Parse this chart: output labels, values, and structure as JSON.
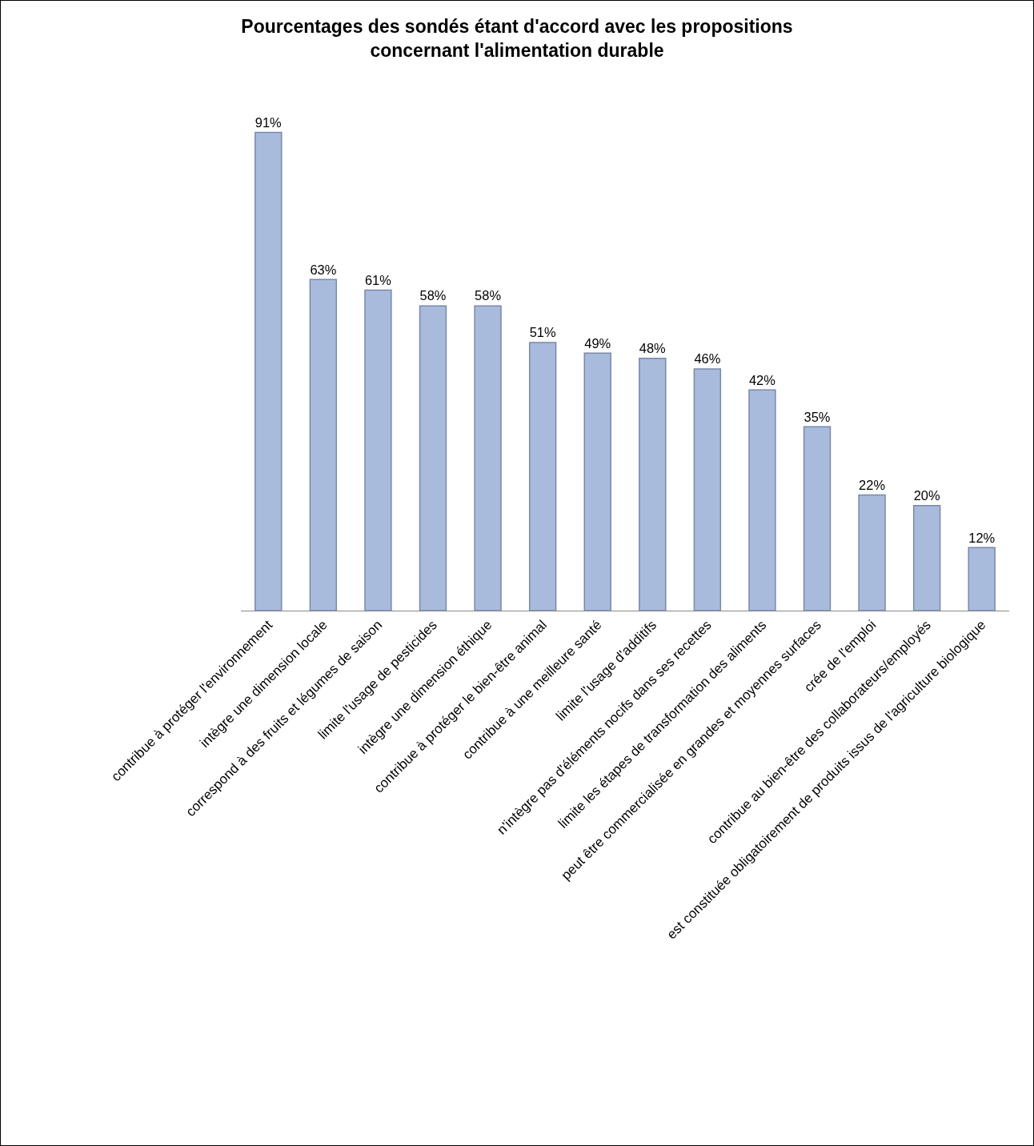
{
  "chart_data": {
    "type": "bar",
    "title": "Pourcentages des sondés étant d'accord avec les propositions\nconcernant l'alimentation durable",
    "categories": [
      "contribue à protéger l'environnement",
      "intègre une dimension locale",
      "correspond à des fruits et légumes de saison",
      "limite l'usage de pesticides",
      "intègre une dimension éthique",
      "contribue à protéger le bien-être animal",
      "contribue à une meilleure santé",
      "limite l'usage d'additifs",
      "n'intègre pas d'éléments nocifs dans ses recettes",
      "limite les étapes de transformation des aliments",
      "peut être commercialisée en grandes et moyennes surfaces",
      "crée de l'emploi",
      "contribue au bien-être des collaborateurs/employés",
      "est constituée obligatoirement de produits issus de l'agriculture biologique"
    ],
    "values": [
      91,
      63,
      61,
      58,
      58,
      51,
      49,
      48,
      46,
      42,
      35,
      22,
      20,
      12
    ],
    "value_labels": [
      "91%",
      "63%",
      "61%",
      "58%",
      "58%",
      "51%",
      "49%",
      "48%",
      "46%",
      "42%",
      "35%",
      "22%",
      "20%",
      "12%"
    ],
    "color": "#a9bbdc",
    "tick_labels": "x",
    "grid": false,
    "legend": false
  }
}
